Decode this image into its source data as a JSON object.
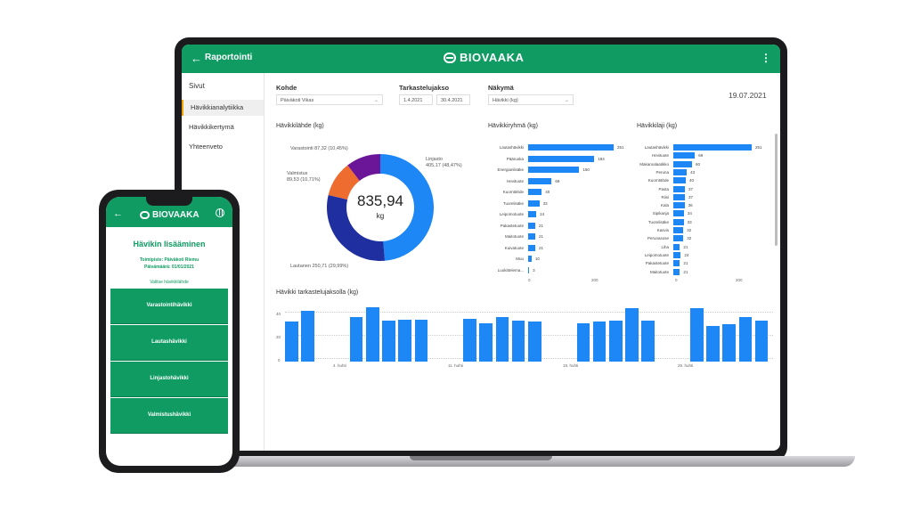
{
  "laptop": {
    "header": {
      "back_label": "Raportointi",
      "brand": "BIOVAAKA",
      "menu_icon": "⋮"
    },
    "sidebar": {
      "heading": "Sivut",
      "items": [
        {
          "label": "Hävikkianalytiikka",
          "active": true
        },
        {
          "label": "Hävikkikertymä",
          "active": false
        },
        {
          "label": "Yhteenveto",
          "active": false
        }
      ]
    },
    "filters": {
      "kohde_label": "Kohde",
      "kohde_value": "Päiväkoti Vikas",
      "period_label": "Tarkastelujakso",
      "period_start": "1.4.2021",
      "period_end": "30.4.2021",
      "view_label": "Näkymä",
      "view_value": "Hävikki (kg)"
    },
    "date": "19.07.2021",
    "donut": {
      "title": "Hävikkilähde (kg)",
      "total": "835,94",
      "unit": "kg",
      "labels": {
        "varastointi": "Varastointi 87,32 (10,45%)",
        "valmistus_a": "Valmistus",
        "valmistus_b": "89,53 (10,71%)",
        "linjasto_a": "Linjasto",
        "linjasto_b": "405,17 (48,47%)",
        "lautanen": "Lautanen 250,71 (29,99%)"
      },
      "colors": {
        "linjasto": "#1c87f5",
        "lautanen": "#1f2fa0",
        "valmistus": "#ef6c2f",
        "varastointi": "#6b1599"
      }
    },
    "group_chart": {
      "title": "Hävikkiryhmä (kg)",
      "ticks": [
        "0",
        "200"
      ]
    },
    "type_chart": {
      "title": "Hävikkilaji (kg)",
      "ticks": [
        "0",
        "200"
      ]
    },
    "timeseries": {
      "title": "Hävikki tarkastelujaksolla (kg)",
      "yticks": [
        "40",
        "20",
        "0"
      ],
      "xticks": [
        "4. huhti",
        "11. huhti",
        "18. huhti",
        "25. huhti"
      ]
    }
  },
  "chart_data": [
    {
      "type": "pie",
      "title": "Hävikkilähde (kg)",
      "categories": [
        "Linjasto",
        "Lautanen",
        "Valmistus",
        "Varastointi"
      ],
      "values": [
        405.17,
        250.71,
        89.53,
        87.32
      ]
    },
    {
      "type": "bar",
      "orientation": "horizontal",
      "title": "Hävikkiryhmä (kg)",
      "categories": [
        "Lautashävikki",
        "Pääruoka",
        "Energianlisäke",
        "Hevituote",
        "Kuorntähde",
        "Tuorelisäke",
        "Leipomotuote",
        "Pakastetuote",
        "Maitotuote",
        "Kuivatuote",
        "Muu",
        "Luokittelema..."
      ],
      "values": [
        251,
        194,
        150,
        69,
        40,
        33,
        24,
        21,
        21,
        21,
        10,
        3
      ],
      "xlim": [
        0,
        251
      ]
    },
    {
      "type": "bar",
      "orientation": "horizontal",
      "title": "Hävikkilaji (kg)",
      "categories": [
        "Lautashävikki",
        "Hevituote",
        "Makaroalaatikko",
        "Peruna",
        "Kuorntähde",
        "Pasta",
        "Riisi",
        "Kala",
        "Sipikanja",
        "Tuorelisäke",
        "Kasvis",
        "Perunasose",
        "Liha",
        "Leipomotuote",
        "Pakastetuote",
        "Maitotuote"
      ],
      "values": [
        251,
        69,
        60,
        43,
        40,
        37,
        37,
        36,
        34,
        33,
        32,
        32,
        21,
        24,
        21,
        21
      ],
      "xlim": [
        0,
        251
      ]
    },
    {
      "type": "bar",
      "title": "Hävikki tarkastelujaksolla (kg)",
      "x": [
        "1.4.",
        "2.4.",
        "3.4.",
        "4.4.",
        "5.4.",
        "6.4.",
        "7.4.",
        "8.4.",
        "9.4.",
        "10.4.",
        "11.4.",
        "12.4.",
        "13.4.",
        "14.4.",
        "15.4.",
        "16.4.",
        "17.4.",
        "18.4.",
        "19.4.",
        "20.4.",
        "21.4.",
        "22.4.",
        "23.4.",
        "24.4.",
        "25.4.",
        "26.4.",
        "27.4.",
        "28.4.",
        "29.4.",
        "30.4."
      ],
      "values": [
        36,
        46,
        0,
        0,
        40,
        49,
        37,
        38,
        38,
        0,
        0,
        39,
        35,
        40,
        37,
        36,
        0,
        0,
        35,
        36,
        37,
        48,
        37,
        0,
        0,
        48,
        32,
        34,
        40,
        37
      ],
      "ylim": [
        0,
        50
      ]
    }
  ],
  "phone": {
    "back_icon": "←",
    "brand": "BIOVAAKA",
    "title": "Hävikin lisääminen",
    "location": "Toimipiste: Päiväkoti Riemu",
    "date_line": "Päivämäärä: 01/01/2021",
    "choose_label": "Valitse hävikkilähde",
    "buttons": [
      "Varastointihävikki",
      "Lautashävikki",
      "Linjastohävikki",
      "Valmistushävikki"
    ]
  }
}
